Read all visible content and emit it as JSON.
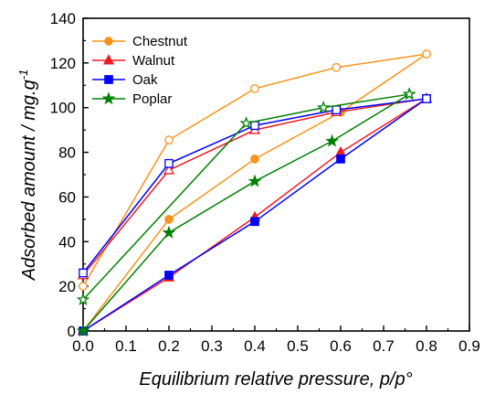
{
  "chart_data": {
    "type": "line",
    "title": "",
    "xlabel": "Equilibrium relative pressure, p/p°",
    "ylabel": "Adsorbed amount / mg.g-1",
    "ylabel_parts": {
      "main": "Adsorbed amount / mg.g",
      "sup": "-1"
    },
    "xlim": [
      0,
      0.9
    ],
    "ylim": [
      0,
      140
    ],
    "xticks": [
      "0.0",
      "0.1",
      "0.2",
      "0.3",
      "0.4",
      "0.5",
      "0.6",
      "0.7",
      "0.8",
      "0.9"
    ],
    "yticks": [
      "0",
      "20",
      "40",
      "60",
      "80",
      "100",
      "120",
      "140"
    ],
    "grid": false,
    "legend_position": "top-left",
    "series": [
      {
        "name": "Chestnut",
        "color": "#f7941d",
        "marker": "circle",
        "adsorption": {
          "x": [
            0.0,
            0.2,
            0.4,
            0.6,
            0.8
          ],
          "y": [
            0,
            50,
            77,
            98,
            124
          ]
        },
        "desorption": {
          "x": [
            0.8,
            0.59,
            0.4,
            0.2,
            0.0
          ],
          "y": [
            124,
            118,
            108.5,
            85.5,
            20
          ]
        }
      },
      {
        "name": "Walnut",
        "color": "#ee1c24",
        "marker": "triangle",
        "adsorption": {
          "x": [
            0.0,
            0.2,
            0.4,
            0.6,
            0.8
          ],
          "y": [
            0,
            24,
            51,
            80,
            104
          ]
        },
        "desorption": {
          "x": [
            0.8,
            0.59,
            0.4,
            0.2,
            0.0
          ],
          "y": [
            104,
            98,
            90,
            72,
            25
          ]
        }
      },
      {
        "name": "Oak",
        "color": "#0000ff",
        "marker": "square",
        "adsorption": {
          "x": [
            0.0,
            0.2,
            0.4,
            0.6,
            0.8
          ],
          "y": [
            0,
            25,
            49,
            77,
            104
          ]
        },
        "desorption": {
          "x": [
            0.8,
            0.59,
            0.4,
            0.2,
            0.0
          ],
          "y": [
            104,
            99,
            92,
            75,
            26
          ]
        }
      },
      {
        "name": "Poplar",
        "color": "#008000",
        "marker": "star",
        "adsorption": {
          "x": [
            0.0,
            0.2,
            0.4,
            0.58,
            0.76
          ],
          "y": [
            0,
            44,
            67,
            85,
            106
          ]
        },
        "desorption": {
          "x": [
            0.76,
            0.56,
            0.38,
            0.0
          ],
          "y": [
            106,
            100,
            93,
            14
          ]
        }
      }
    ]
  }
}
